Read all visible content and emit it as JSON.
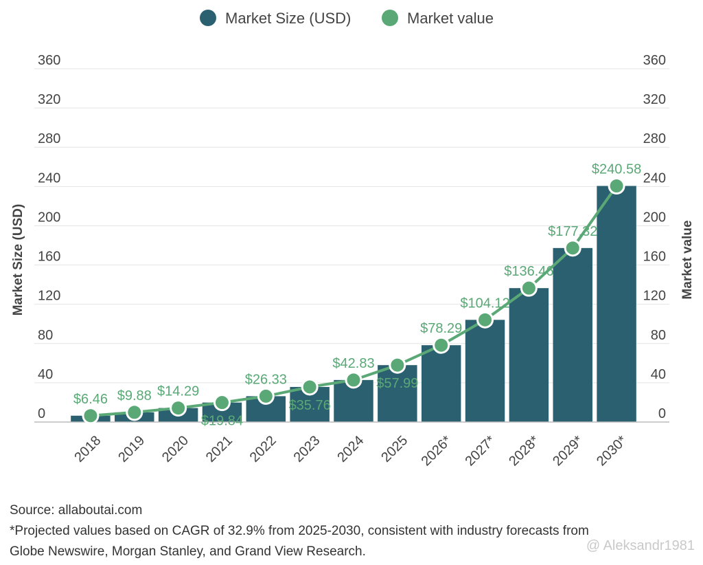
{
  "chart_data": {
    "type": "bar",
    "categories": [
      "2018",
      "2019",
      "2020",
      "2021",
      "2022",
      "2023",
      "2024",
      "2025",
      "2026*",
      "2027*",
      "2028*",
      "2029*",
      "2030*"
    ],
    "series": [
      {
        "name": "Market Size (USD)",
        "type": "bar",
        "color": "#2b6070",
        "values": [
          6.46,
          9.88,
          14.29,
          19.84,
          26.33,
          35.76,
          42.83,
          57.99,
          78.29,
          104.12,
          136.46,
          177.32,
          240.58
        ]
      },
      {
        "name": "Market value",
        "type": "line",
        "color": "#5aa876",
        "values": [
          6.46,
          9.88,
          14.29,
          19.84,
          26.33,
          35.76,
          42.83,
          57.99,
          78.29,
          104.12,
          136.46,
          177.32,
          240.58
        ]
      }
    ],
    "data_labels": [
      "$6.46",
      "$9.88",
      "$14.29",
      "$19.84",
      "$26.33",
      "$35.76",
      "$42.83",
      "$57.99",
      "$78.29",
      "$104.12",
      "$136.46",
      "$177.32",
      "$240.58"
    ],
    "ylabel_left": "Market Size (USD)",
    "ylabel_right": "Market value",
    "yticks": [
      "0",
      "40",
      "80",
      "120",
      "160",
      "200",
      "240",
      "280",
      "320",
      "360"
    ],
    "ylim": [
      0,
      360
    ],
    "grid": true,
    "legend_position": "top-center"
  },
  "footer": {
    "source": "Source: allaboutai.com",
    "note_line1": "*Projected values based on CAGR of 32.9% from 2025-2030, consistent with industry forecasts from",
    "note_line2": "Globe Newswire, Morgan Stanley, and Grand View Research."
  },
  "watermark": {
    "text": "@ Aleksandr1981"
  }
}
